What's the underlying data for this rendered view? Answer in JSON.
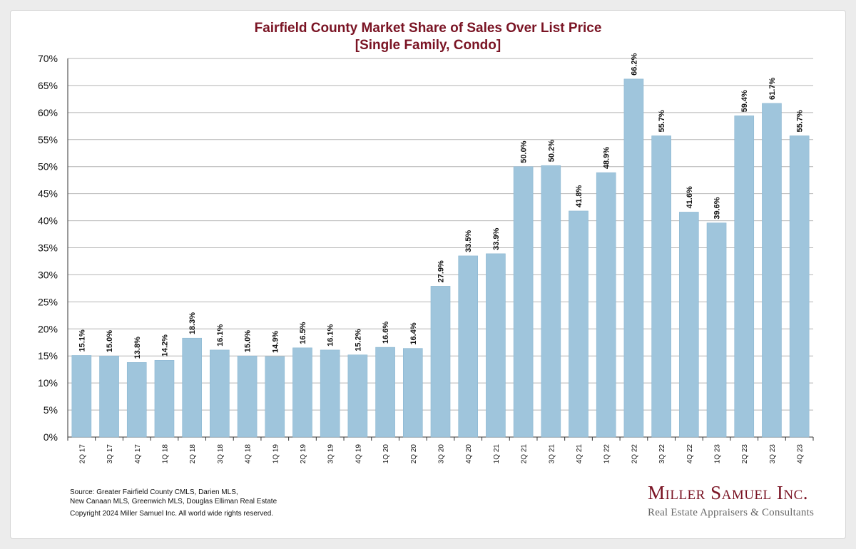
{
  "chart_data": {
    "type": "bar",
    "title": "Fairfield County Market Share of Sales Over List Price",
    "subtitle": "[Single Family, Condo]",
    "xlabel": "",
    "ylabel": "",
    "ylim": [
      0,
      70
    ],
    "y_ticks": [
      "0%",
      "5%",
      "10%",
      "15%",
      "20%",
      "25%",
      "30%",
      "35%",
      "40%",
      "45%",
      "50%",
      "55%",
      "60%",
      "65%",
      "70%"
    ],
    "grid": true,
    "categories": [
      "2Q 17",
      "3Q 17",
      "4Q 17",
      "1Q 18",
      "2Q 18",
      "3Q 18",
      "4Q 18",
      "1Q 19",
      "2Q 19",
      "3Q 19",
      "4Q 19",
      "1Q 20",
      "2Q 20",
      "3Q 20",
      "4Q 20",
      "1Q 21",
      "2Q 21",
      "3Q 21",
      "4Q 21",
      "1Q 22",
      "2Q 22",
      "3Q 22",
      "4Q 22",
      "1Q 23",
      "2Q 23",
      "3Q 23",
      "4Q 23"
    ],
    "values": [
      15.1,
      15.0,
      13.8,
      14.2,
      18.3,
      16.1,
      15.0,
      14.9,
      16.5,
      16.1,
      15.2,
      16.6,
      16.4,
      27.9,
      33.5,
      33.9,
      50.0,
      50.2,
      41.8,
      48.9,
      66.2,
      55.7,
      41.6,
      39.6,
      59.4,
      61.7,
      55.7
    ],
    "data_labels": [
      "15.1%",
      "15.0%",
      "13.8%",
      "14.2%",
      "18.3%",
      "16.1%",
      "15.0%",
      "14.9%",
      "16.5%",
      "16.1%",
      "15.2%",
      "16.6%",
      "16.4%",
      "27.9%",
      "33.5%",
      "33.9%",
      "50.0%",
      "50.2%",
      "41.8%",
      "48.9%",
      "66.2%",
      "55.7%",
      "41.6%",
      "39.6%",
      "59.4%",
      "61.7%",
      "55.7%"
    ]
  },
  "colors": {
    "bar": "#9fc5dc",
    "bar_edge": "#86b3cf",
    "title": "#7a1424",
    "grid": "#b4b4b4"
  },
  "footer": {
    "source_line1": "Source:  Greater Fairfield County CMLS, Darien MLS,",
    "source_line2": "New Canaan MLS, Greenwich MLS, Douglas Elliman Real Estate",
    "copyright": "Copyright 2024 Miller Samuel Inc.  All world wide rights reserved."
  },
  "brand": {
    "name": "Miller Samuel Inc.",
    "tagline": "Real Estate Appraisers & Consultants"
  }
}
